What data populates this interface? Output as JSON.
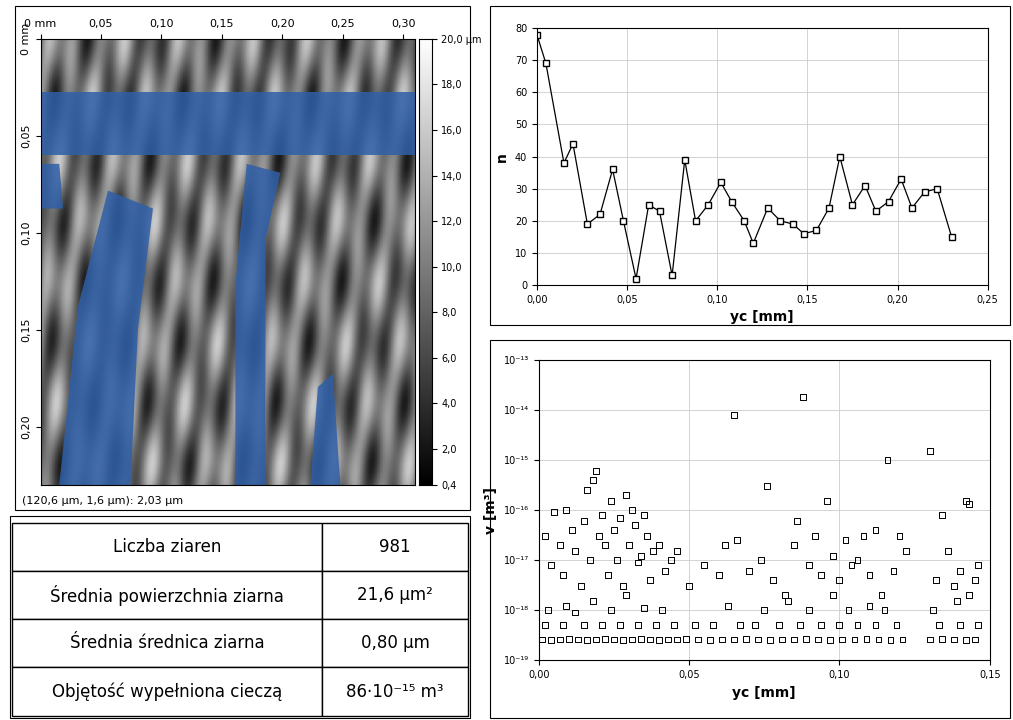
{
  "image": {
    "type": "image",
    "xlim": [
      0,
      0.31
    ],
    "xticks": [
      {
        "value": 0,
        "label": "0 mm"
      },
      {
        "value": 0.05,
        "label": "0,05"
      },
      {
        "value": 0.1,
        "label": "0,10"
      },
      {
        "value": 0.15,
        "label": "0,15"
      },
      {
        "value": 0.2,
        "label": "0,20"
      },
      {
        "value": 0.25,
        "label": "0,25"
      },
      {
        "value": 0.3,
        "label": "0,30"
      }
    ],
    "ylim": [
      0,
      0.23
    ],
    "yticks": [
      {
        "value": 0,
        "label": "0 mm"
      },
      {
        "value": 0.05,
        "label": "0,05"
      },
      {
        "value": 0.1,
        "label": "0,10"
      },
      {
        "value": 0.15,
        "label": "0,15"
      },
      {
        "value": 0.2,
        "label": "0,20"
      }
    ],
    "colorbar": {
      "range": [
        0.4,
        20.0
      ],
      "ticks": [
        {
          "value": 0.4,
          "label": "0,4"
        },
        {
          "value": 2.0,
          "label": "2,0"
        },
        {
          "value": 4.0,
          "label": "4,0"
        },
        {
          "value": 6.0,
          "label": "6,0"
        },
        {
          "value": 8.0,
          "label": "8,0"
        },
        {
          "value": 10.0,
          "label": "10,0"
        },
        {
          "value": 12.0,
          "label": "12,0"
        },
        {
          "value": 14.0,
          "label": "14,0"
        },
        {
          "value": 16.0,
          "label": "16,0"
        },
        {
          "value": 18.0,
          "label": "18,0"
        },
        {
          "value": 20.0,
          "label": "20,0 µm"
        }
      ]
    },
    "status": "(120,6 µm, 1,6 µm): 2,03 µm"
  },
  "table": {
    "rows": [
      [
        "Liczba ziaren",
        "981"
      ],
      [
        "Średnia powierzchnia ziarna",
        "21,6 µm²"
      ],
      [
        "Średnia średnica ziarna",
        "0,80 µm"
      ],
      [
        "Objętość wypełniona cieczą",
        "86·10⁻¹⁵ m³"
      ]
    ]
  },
  "chart_data": [
    {
      "type": "line",
      "xlabel": "yc [mm]",
      "ylabel": "n",
      "color": "#000000",
      "marker": "square",
      "grid": true,
      "x": [
        0.0,
        0.005,
        0.015,
        0.02,
        0.028,
        0.035,
        0.042,
        0.048,
        0.055,
        0.062,
        0.068,
        0.075,
        0.082,
        0.088,
        0.095,
        0.102,
        0.108,
        0.115,
        0.12,
        0.128,
        0.135,
        0.142,
        0.148,
        0.155,
        0.162,
        0.168,
        0.175,
        0.182,
        0.188,
        0.195,
        0.202,
        0.208,
        0.215,
        0.222,
        0.23
      ],
      "values": [
        78,
        69,
        38,
        44,
        19,
        22,
        36,
        20,
        2,
        25,
        23,
        3,
        39,
        20,
        25,
        32,
        26,
        20,
        13,
        24,
        20,
        19,
        16,
        17,
        24,
        40,
        25,
        31,
        23,
        26,
        33,
        24,
        29,
        30,
        15
      ],
      "xlim": [
        0,
        0.25
      ],
      "xticks": [
        {
          "value": 0,
          "label": "0,00"
        },
        {
          "value": 0.05,
          "label": "0,05"
        },
        {
          "value": 0.1,
          "label": "0,10"
        },
        {
          "value": 0.15,
          "label": "0,15"
        },
        {
          "value": 0.2,
          "label": "0,20"
        },
        {
          "value": 0.25,
          "label": "0,25"
        }
      ],
      "ylim": [
        0,
        80
      ],
      "yticks": [
        0,
        10,
        20,
        30,
        40,
        50,
        60,
        70,
        80
      ]
    },
    {
      "type": "scatter",
      "xlabel": "yc [mm]",
      "ylabel": "v [m³]",
      "color": "#000000",
      "marker": "square",
      "grid": true,
      "log": "y",
      "x": [
        0.001,
        0.004,
        0.007,
        0.01,
        0.013,
        0.016,
        0.019,
        0.022,
        0.025,
        0.028,
        0.031,
        0.034,
        0.037,
        0.04,
        0.043,
        0.046,
        0.049,
        0.053,
        0.057,
        0.061,
        0.065,
        0.069,
        0.073,
        0.077,
        0.081,
        0.085,
        0.089,
        0.093,
        0.097,
        0.101,
        0.105,
        0.109,
        0.113,
        0.117,
        0.121,
        0.13,
        0.134,
        0.138,
        0.142,
        0.145,
        0.002,
        0.008,
        0.015,
        0.021,
        0.027,
        0.033,
        0.039,
        0.045,
        0.052,
        0.058,
        0.067,
        0.072,
        0.08,
        0.087,
        0.094,
        0.1,
        0.106,
        0.112,
        0.119,
        0.133,
        0.14,
        0.146,
        0.003,
        0.009,
        0.012,
        0.018,
        0.024,
        0.029,
        0.035,
        0.041,
        0.063,
        0.075,
        0.083,
        0.09,
        0.098,
        0.103,
        0.11,
        0.115,
        0.131,
        0.139,
        0.143,
        0.002,
        0.004,
        0.005,
        0.007,
        0.008,
        0.009,
        0.011,
        0.012,
        0.014,
        0.015,
        0.016,
        0.017,
        0.018,
        0.019,
        0.02,
        0.021,
        0.022,
        0.023,
        0.024,
        0.025,
        0.026,
        0.027,
        0.028,
        0.029,
        0.03,
        0.031,
        0.032,
        0.033,
        0.034,
        0.035,
        0.036,
        0.037,
        0.038,
        0.04,
        0.042,
        0.044,
        0.046,
        0.05,
        0.055,
        0.06,
        0.062,
        0.065,
        0.066,
        0.07,
        0.074,
        0.076,
        0.078,
        0.082,
        0.085,
        0.086,
        0.088,
        0.09,
        0.092,
        0.094,
        0.096,
        0.098,
        0.1,
        0.102,
        0.104,
        0.106,
        0.108,
        0.11,
        0.112,
        0.114,
        0.116,
        0.118,
        0.12,
        0.122,
        0.13,
        0.132,
        0.134,
        0.136,
        0.138,
        0.14,
        0.142,
        0.143,
        0.145,
        0.146
      ],
      "values": [
        2.6e-19,
        2.5e-19,
        2.6e-19,
        2.7e-19,
        2.6e-19,
        2.5e-19,
        2.6e-19,
        2.7e-19,
        2.6e-19,
        2.5e-19,
        2.6e-19,
        2.7e-19,
        2.6e-19,
        2.5e-19,
        2.6e-19,
        2.6e-19,
        2.7e-19,
        2.6e-19,
        2.5e-19,
        2.6e-19,
        2.6e-19,
        2.7e-19,
        2.6e-19,
        2.5e-19,
        2.6e-19,
        2.6e-19,
        2.7e-19,
        2.6e-19,
        2.5e-19,
        2.6e-19,
        2.6e-19,
        2.7e-19,
        2.6e-19,
        2.5e-19,
        2.6e-19,
        2.6e-19,
        2.7e-19,
        2.6e-19,
        2.5e-19,
        2.6e-19,
        5e-19,
        5e-19,
        5e-19,
        5e-19,
        5e-19,
        5e-19,
        5e-19,
        5e-19,
        5e-19,
        5e-19,
        5e-19,
        5e-19,
        5e-19,
        5e-19,
        5e-19,
        5e-19,
        5e-19,
        5e-19,
        5e-19,
        5e-19,
        5e-19,
        5e-19,
        1e-18,
        1.2e-18,
        9e-19,
        1.5e-18,
        1e-18,
        2e-18,
        1.1e-18,
        1e-18,
        1.2e-18,
        1e-18,
        1.5e-18,
        1e-18,
        2e-18,
        1e-18,
        1.2e-18,
        1e-18,
        1e-18,
        1.5e-18,
        2e-18,
        3e-17,
        8e-18,
        9e-17,
        2e-17,
        5e-18,
        1e-16,
        4e-17,
        1.5e-17,
        3e-18,
        6e-17,
        2.5e-16,
        1e-17,
        4e-16,
        6e-16,
        3e-17,
        8e-17,
        2e-17,
        5e-18,
        1.5e-16,
        4e-17,
        1e-17,
        7e-17,
        3e-18,
        2e-16,
        2e-17,
        1e-16,
        5e-17,
        9e-18,
        1.2e-17,
        8e-17,
        3e-17,
        4e-18,
        1.5e-17,
        2e-17,
        6e-18,
        1e-17,
        1.5e-17,
        3e-18,
        8e-18,
        5e-18,
        2e-17,
        8e-15,
        2.5e-17,
        6e-18,
        1e-17,
        3e-16,
        4e-18,
        2e-18,
        2e-17,
        6e-17,
        1.8e-14,
        8e-18,
        3e-17,
        5e-18,
        1.5e-16,
        1.2e-17,
        4e-18,
        2.5e-17,
        8e-18,
        1e-17,
        3e-17,
        5e-18,
        4e-17,
        2e-18,
        1e-15,
        6e-18,
        3e-17,
        1.5e-17,
        1.5e-15,
        4e-18,
        8e-17,
        1.5e-17,
        3e-18,
        6e-18,
        1.5e-16,
        1.3e-16,
        4e-18,
        8e-18
      ],
      "xlim": [
        0,
        0.15
      ],
      "xticks": [
        {
          "value": 0,
          "label": "0,00"
        },
        {
          "value": 0.05,
          "label": "0,05"
        },
        {
          "value": 0.1,
          "label": "0,10"
        },
        {
          "value": 0.15,
          "label": "0,15"
        }
      ],
      "ylim": [
        1e-19,
        1e-13
      ],
      "yticks": [
        {
          "value": 1e-19,
          "label": "10⁻¹⁹"
        },
        {
          "value": 1e-18,
          "label": "10⁻¹⁸"
        },
        {
          "value": 1e-17,
          "label": "10⁻¹⁷"
        },
        {
          "value": 1e-16,
          "label": "10⁻¹⁶"
        },
        {
          "value": 1e-15,
          "label": "10⁻¹⁵"
        },
        {
          "value": 1e-14,
          "label": "10⁻¹⁴"
        },
        {
          "value": 1e-13,
          "label": "10⁻¹³"
        }
      ]
    }
  ]
}
